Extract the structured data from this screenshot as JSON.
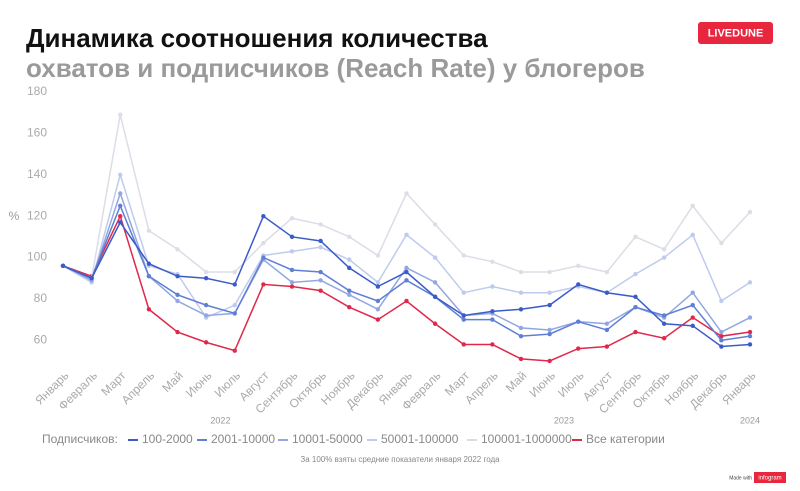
{
  "chart_data": {
    "type": "line",
    "title": "Динамика соотношения количества",
    "subtitle": "охватов и подписчиков (Reach Rate) у блогеров",
    "brand": "LIVEDUNE",
    "y_label": "%",
    "legend_title": "Подписчиков:",
    "footnote": "За 100% взяты средние показатели января 2022 года",
    "credit": "Made with",
    "credit_brand": "infogram",
    "categories": [
      "Январь",
      "Февраль",
      "Март",
      "Апрель",
      "Май",
      "Июнь",
      "Июль",
      "Август",
      "Сентябрь",
      "Октябрь",
      "Ноябрь",
      "Декабрь",
      "Январь",
      "Февраль",
      "Март",
      "Апрель",
      "Май",
      "Июнь",
      "Июль",
      "Август",
      "Сентябрь",
      "Октябрь",
      "Ноябрь",
      "Декабрь",
      "Январь"
    ],
    "years": [
      "2022",
      "2023",
      "2024"
    ],
    "ylim": [
      50,
      180
    ],
    "yticks": [
      60,
      80,
      100,
      120,
      140,
      160,
      180
    ],
    "grid": false,
    "series": [
      {
        "name": "100-2000",
        "color": "#3a5cc8",
        "values": [
          96,
          90,
          117,
          97,
          91,
          90,
          87,
          120,
          110,
          108,
          95,
          86,
          93,
          81,
          72,
          74,
          75,
          77,
          87,
          83,
          81,
          68,
          67,
          57,
          58
        ]
      },
      {
        "name": "2001-10000",
        "color": "#5f7fd6",
        "values": [
          96,
          90,
          125,
          91,
          82,
          77,
          73,
          100,
          94,
          93,
          84,
          79,
          89,
          81,
          70,
          70,
          62,
          63,
          69,
          65,
          76,
          72,
          77,
          60,
          62
        ]
      },
      {
        "name": "10001-50000",
        "color": "#92a7e2",
        "values": [
          96,
          89,
          131,
          91,
          79,
          72,
          73,
          99,
          88,
          89,
          82,
          75,
          95,
          88,
          72,
          73,
          66,
          65,
          69,
          68,
          76,
          71,
          83,
          64,
          71
        ]
      },
      {
        "name": "50001-100000",
        "color": "#bfcbee",
        "values": [
          96,
          88,
          140,
          96,
          92,
          71,
          77,
          101,
          103,
          105,
          99,
          88,
          111,
          100,
          83,
          86,
          83,
          83,
          86,
          83,
          92,
          100,
          111,
          79,
          88
        ]
      },
      {
        "name": "100001-1000000",
        "color": "#dcdde6",
        "values": [
          96,
          90,
          169,
          113,
          104,
          93,
          93,
          107,
          119,
          116,
          110,
          101,
          131,
          116,
          101,
          98,
          93,
          93,
          96,
          93,
          110,
          104,
          125,
          107,
          122
        ]
      },
      {
        "name": "Все категории",
        "color": "#e0284a",
        "values": [
          96,
          91,
          120,
          75,
          64,
          59,
          55,
          87,
          86,
          84,
          76,
          70,
          79,
          68,
          58,
          58,
          51,
          50,
          56,
          57,
          64,
          61,
          71,
          62,
          64
        ]
      }
    ]
  }
}
